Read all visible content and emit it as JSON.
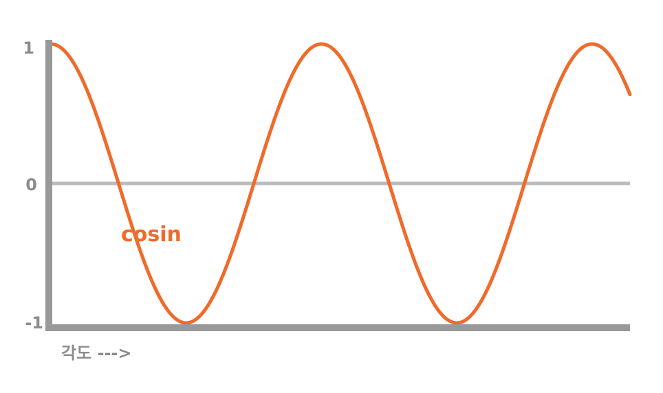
{
  "chart_data": {
    "type": "line",
    "xlabel": "각도 --->",
    "ylabel": "",
    "ylim": [
      -1,
      1
    ],
    "yticks": [
      {
        "value": 1,
        "label": "1"
      },
      {
        "value": 0,
        "label": "0"
      },
      {
        "value": -1,
        "label": "-1"
      }
    ],
    "grid": false,
    "legend": "none",
    "baseline": 0,
    "series": [
      {
        "name": "cosin",
        "function": "cos",
        "x_unit": "cycles",
        "x_range": [
          0,
          2.14
        ],
        "color": "#f06a2a"
      }
    ],
    "colors": {
      "axis": "#999999",
      "baseline": "#bbbbbb",
      "tick_text": "#8c8c8c",
      "series": "#f06a2a"
    }
  }
}
